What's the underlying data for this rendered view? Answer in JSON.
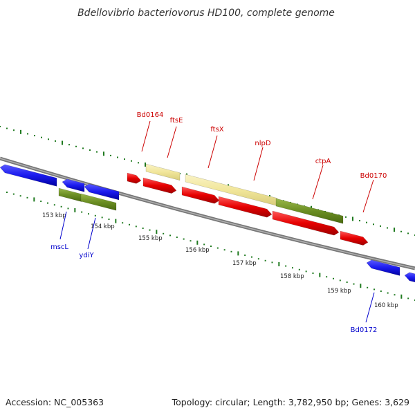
{
  "title": "Bdellovibrio bacteriovorus HD100, complete genome",
  "accession": "Accession: NC_005363",
  "summary": "Topology: circular; Length: 3,782,950 bp; Genes: 3,629",
  "colors": {
    "forward_cds": "#e60000",
    "reverse_cds": "#1a1aee",
    "gene_forward": "#f1e69a",
    "gene_reverse": "#6b8e23",
    "backbone": "#888888",
    "ticks": "#1f7a1f",
    "label_forward": "#cc0000",
    "label_reverse": "#0000cc"
  },
  "scale_labels": [
    "153 kbp",
    "154 kbp",
    "155 kbp",
    "156 kbp",
    "157 kbp",
    "158 kbp",
    "159 kbp",
    "160 kbp"
  ],
  "gene_labels": {
    "forward": [
      "Bd0164",
      "ftsE",
      "ftsX",
      "nlpD",
      "ctpA",
      "Bd0170"
    ],
    "reverse": [
      "mscL",
      "ydiY",
      "Bd0172"
    ]
  }
}
